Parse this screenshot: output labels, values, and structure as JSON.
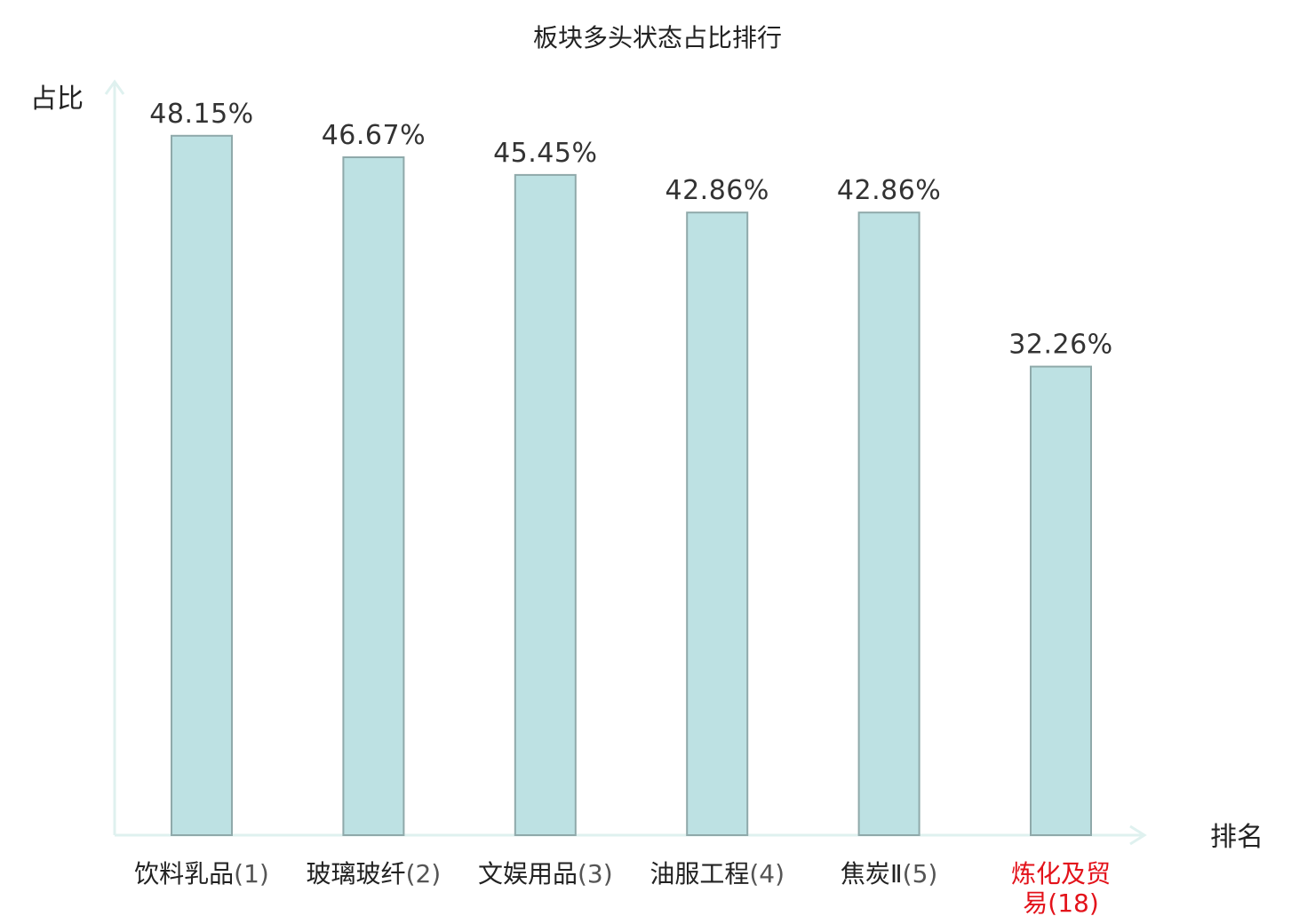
{
  "chart_data": {
    "type": "bar",
    "title": "板块多头状态占比排行",
    "ylabel": "占比",
    "xlabel": "排名",
    "ylim": [
      0,
      52.6
    ],
    "grid": false,
    "categories": [
      {
        "name": "饮料乳品",
        "rank": "(1)",
        "highlight": false
      },
      {
        "name": "玻璃玻纤",
        "rank": "(2)",
        "highlight": false
      },
      {
        "name": "文娱用品",
        "rank": "(3)",
        "highlight": false
      },
      {
        "name": "油服工程",
        "rank": "(4)",
        "highlight": false
      },
      {
        "name": "焦炭Ⅱ",
        "rank": "(5)",
        "highlight": false
      },
      {
        "name": "炼化及贸易",
        "rank": "(18)",
        "highlight": true,
        "lines": [
          "炼化及贸",
          "易"
        ]
      }
    ],
    "values": [
      48.15,
      46.67,
      45.45,
      42.86,
      42.86,
      32.26
    ],
    "value_labels": [
      "48.15%",
      "46.67%",
      "45.45%",
      "42.86%",
      "42.86%",
      "32.26%"
    ]
  },
  "colors": {
    "bar_fill": "#bde1e3",
    "bar_stroke": "#8fa9aa",
    "axis": "#dff1ef",
    "highlight": "#e3121a"
  }
}
